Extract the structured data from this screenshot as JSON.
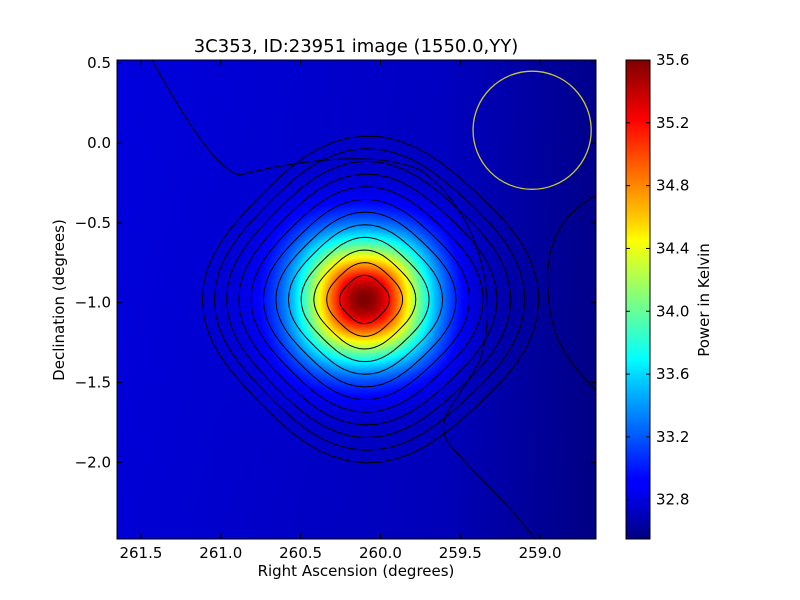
{
  "chart_data": {
    "type": "heatmap",
    "title": "3C353, ID:23951 image (1550.0,YY)",
    "xlabel": "Right Ascension (degrees)",
    "ylabel": "Declination (degrees)",
    "colorbar_label": "Power in Kelvin",
    "xlim": [
      261.65,
      258.65
    ],
    "ylim": [
      -2.48,
      0.52
    ],
    "x_ticks": [
      261.5,
      261.0,
      260.5,
      260.0,
      259.5,
      259.0
    ],
    "x_tick_labels": [
      "261.5",
      "261.0",
      "260.5",
      "260.0",
      "259.5",
      "259.0"
    ],
    "y_ticks": [
      0.5,
      0.0,
      -0.5,
      -1.0,
      -1.5,
      -2.0
    ],
    "y_tick_labels": [
      "0.5",
      "0.0",
      "−0.5",
      "−1.0",
      "−1.5",
      "−2.0"
    ],
    "colorbar_range": [
      32.55,
      35.6
    ],
    "colorbar_ticks": [
      32.8,
      33.2,
      33.6,
      34.0,
      34.4,
      34.8,
      35.2,
      35.6
    ],
    "colorbar_tick_labels": [
      "32.8",
      "33.2",
      "33.6",
      "34.0",
      "34.4",
      "34.8",
      "35.2",
      "35.6"
    ],
    "colormap": "jet",
    "peak": {
      "ra": 260.1,
      "dec": -0.98,
      "value": 35.6
    },
    "background_level": 32.75,
    "contour_count": 12,
    "beam_circle": {
      "ra": 259.05,
      "dec": 0.08,
      "radius_deg": 0.37,
      "color": "#c8c832"
    }
  }
}
